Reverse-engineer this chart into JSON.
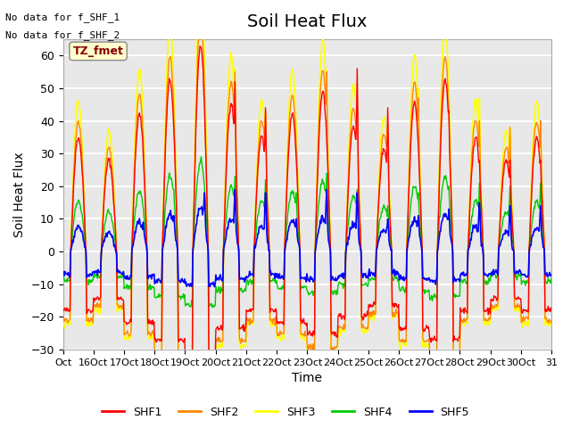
{
  "title": "Soil Heat Flux",
  "ylabel": "Soil Heat Flux",
  "xlabel": "Time",
  "xlabels": [
    "Oct",
    "16Oct",
    "17Oct",
    "18Oct",
    "19Oct",
    "20Oct",
    "21Oct",
    "22Oct",
    "23Oct",
    "24Oct",
    "25Oct",
    "26Oct",
    "27Oct",
    "28Oct",
    "29Oct",
    "30Oct",
    "31"
  ],
  "ylim": [
    -30,
    65
  ],
  "yticks": [
    -30,
    -20,
    -10,
    0,
    10,
    20,
    30,
    40,
    50,
    60
  ],
  "series_colors": [
    "#FF0000",
    "#FF8800",
    "#FFFF00",
    "#00CC00",
    "#0000FF"
  ],
  "series_names": [
    "SHF1",
    "SHF2",
    "SHF3",
    "SHF4",
    "SHF5"
  ],
  "annotations": [
    "No data for f_SHF_1",
    "No data for f_SHF_2"
  ],
  "box_label": "TZ_fmet",
  "background_color": "#FFFFFF",
  "plot_bg_color": "#E8E8E8",
  "grid_color": "#FFFFFF",
  "title_fontsize": 14,
  "label_fontsize": 10
}
